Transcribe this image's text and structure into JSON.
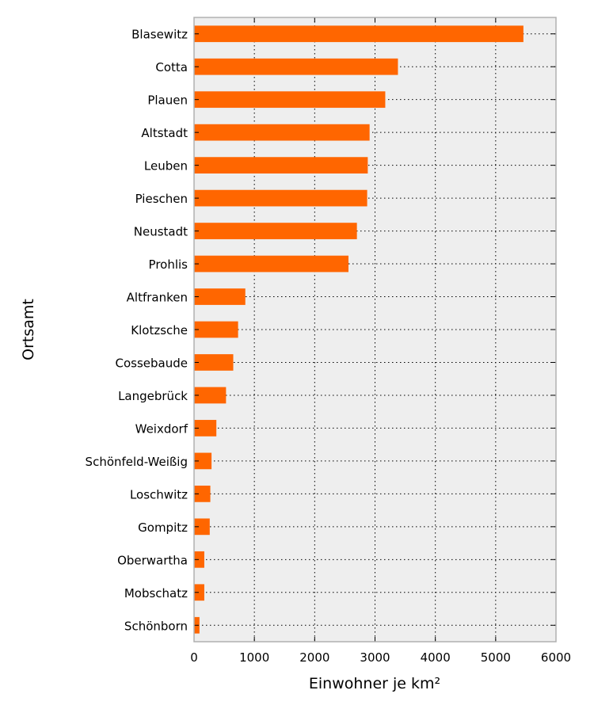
{
  "chart_data": {
    "type": "bar",
    "orientation": "horizontal",
    "categories": [
      "Blasewitz",
      "Cotta",
      "Plauen",
      "Altstadt",
      "Leuben",
      "Pieschen",
      "Neustadt",
      "Prohlis",
      "Altfranken",
      "Klotzsche",
      "Cossebaude",
      "Langebrück",
      "Weixdorf",
      "Schönfeld-Weißig",
      "Loschwitz",
      "Gompitz",
      "Oberwartha",
      "Mobschatz",
      "Schönborn"
    ],
    "values": [
      5460,
      3380,
      3170,
      2910,
      2880,
      2870,
      2700,
      2560,
      850,
      730,
      650,
      530,
      370,
      290,
      270,
      260,
      170,
      170,
      90
    ],
    "xlabel": "Einwohner je km²",
    "ylabel": "Ortsamt",
    "xlim": [
      0,
      6000
    ],
    "xticks": [
      0,
      1000,
      2000,
      3000,
      4000,
      5000,
      6000
    ],
    "grid": true,
    "colors": {
      "bar": "#ff6600",
      "plot_background": "#eeeeee",
      "frame": "#b0b0b0"
    }
  }
}
